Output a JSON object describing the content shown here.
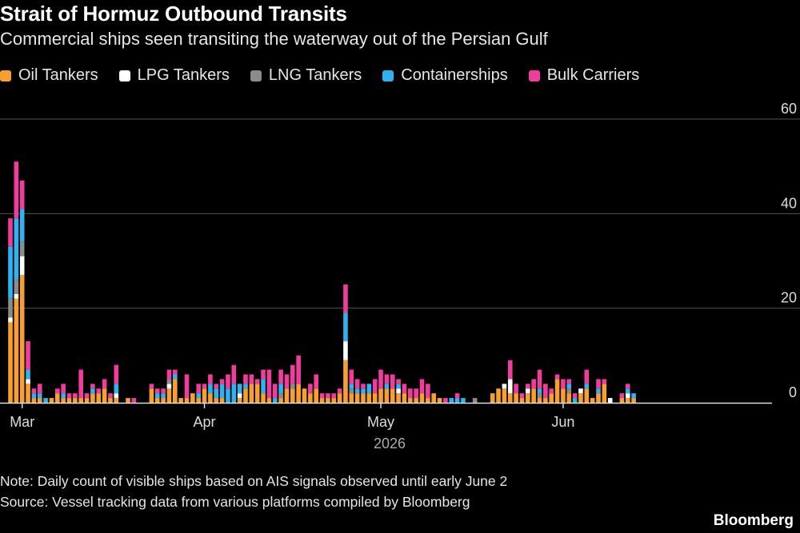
{
  "title": "Strait of Hormuz Outbound Transits",
  "subtitle": "Commercial ships seen transiting the waterway out of the Persian Gulf",
  "note": "Note: Daily count of visible ships based on AIS signals observed until early June 2",
  "source": "Source: Vessel tracking data from various platforms compiled by Bloomberg",
  "brand": "Bloomberg",
  "chart_data": {
    "type": "bar",
    "stacked": true,
    "title": "Strait of Hormuz Outbound Transits",
    "subtitle": "Commercial ships seen transiting the waterway out of the Persian Gulf",
    "ylim": [
      0,
      60
    ],
    "y_ticks": [
      0,
      20,
      40,
      60
    ],
    "y_axis_side": "right",
    "grid": true,
    "legend_position": "top-left",
    "x_start_date": "2026-02-27",
    "x_tick_labels": [
      {
        "label": "Mar",
        "date": "2026-03-01"
      },
      {
        "label": "Apr",
        "date": "2026-04-01"
      },
      {
        "label": "May",
        "date": "2026-05-01"
      },
      {
        "label": "Jun",
        "date": "2026-06-01"
      }
    ],
    "x_year_label": "2026",
    "series": [
      {
        "name": "Oil Tankers",
        "color": "#f7a030",
        "values": [
          17,
          22,
          27,
          4,
          1,
          1,
          0,
          1,
          2,
          1,
          1,
          1,
          1,
          1,
          2,
          2,
          3,
          1,
          1,
          0,
          1,
          0,
          0,
          0,
          3,
          1,
          1,
          3,
          5,
          1,
          1,
          2,
          1,
          3,
          2,
          1,
          1,
          0,
          0,
          1,
          3,
          4,
          4,
          2,
          1,
          0,
          1,
          3,
          3,
          4,
          3,
          2,
          3,
          1,
          1,
          1,
          2,
          9,
          2,
          2,
          2,
          2,
          2,
          3,
          3,
          3,
          2,
          2,
          1,
          1,
          2,
          1,
          2,
          1,
          0,
          0,
          0,
          0,
          0,
          0,
          0,
          0,
          2,
          3,
          3,
          2,
          2,
          1,
          2,
          3,
          1,
          1,
          2,
          5,
          3,
          2,
          0,
          2,
          3,
          1,
          2,
          4,
          0,
          0,
          1,
          1,
          1
        ]
      },
      {
        "name": "LPG Tankers",
        "color": "#ffffff",
        "values": [
          1,
          1,
          4,
          1,
          0,
          0,
          0,
          0,
          0,
          0,
          0,
          0,
          0,
          0,
          0,
          0,
          0,
          0,
          1,
          0,
          0,
          0,
          0,
          0,
          0,
          0,
          0,
          1,
          0,
          0,
          0,
          0,
          0,
          0,
          0,
          0,
          0,
          0,
          0,
          1,
          0,
          0,
          0,
          0,
          0,
          0,
          0,
          0,
          0,
          0,
          0,
          0,
          0,
          0,
          0,
          0,
          0,
          4,
          0,
          0,
          0,
          0,
          0,
          0,
          0,
          0,
          1,
          0,
          0,
          0,
          0,
          0,
          0,
          0,
          0,
          0,
          0,
          0,
          0,
          0,
          0,
          0,
          0,
          0,
          1,
          3,
          0,
          0,
          1,
          0,
          0,
          0,
          0,
          0,
          0,
          0,
          0,
          1,
          0,
          0,
          0,
          0,
          1,
          0,
          0,
          1,
          0
        ]
      },
      {
        "name": "LNG Tankers",
        "color": "#8c8c8c",
        "values": [
          4,
          3,
          3,
          0,
          0,
          0,
          0,
          0,
          0,
          0,
          0,
          0,
          0,
          0,
          0,
          0,
          0,
          0,
          0,
          0,
          0,
          0,
          0,
          0,
          0,
          0,
          0,
          1,
          0,
          0,
          0,
          0,
          0,
          0,
          0,
          0,
          0,
          0,
          0,
          0,
          0,
          0,
          0,
          0,
          0,
          0,
          1,
          0,
          1,
          0,
          0,
          0,
          0,
          0,
          0,
          0,
          0,
          0,
          1,
          0,
          0,
          0,
          0,
          0,
          0,
          0,
          0,
          0,
          0,
          0,
          0,
          0,
          0,
          0,
          0,
          0,
          0,
          0,
          0,
          1,
          0,
          0,
          0,
          0,
          0,
          0,
          0,
          0,
          0,
          0,
          1,
          0,
          0,
          0,
          0,
          1,
          0,
          0,
          0,
          0,
          0,
          0,
          0,
          0,
          0,
          0,
          0
        ]
      },
      {
        "name": "Containerships",
        "color": "#2fb2ef",
        "values": [
          11,
          13,
          7,
          2,
          1,
          1,
          1,
          0,
          0,
          1,
          0,
          0,
          0,
          0,
          1,
          0,
          0,
          0,
          2,
          0,
          0,
          0,
          0,
          0,
          0,
          1,
          1,
          0,
          1,
          0,
          0,
          0,
          1,
          0,
          2,
          2,
          3,
          3,
          4,
          2,
          1,
          0,
          0,
          3,
          0,
          1,
          2,
          0,
          0,
          0,
          0,
          0,
          0,
          0,
          0,
          0,
          0,
          6,
          1,
          1,
          1,
          2,
          0,
          0,
          1,
          0,
          1,
          0,
          0,
          0,
          0,
          0,
          0,
          0,
          0,
          1,
          1,
          1,
          0,
          0,
          0,
          0,
          0,
          0,
          0,
          0,
          0,
          0,
          0,
          0,
          1,
          0,
          0,
          0,
          0,
          1,
          1,
          0,
          1,
          0,
          1,
          0,
          0,
          0,
          0,
          1,
          1
        ]
      },
      {
        "name": "Bulk Carriers",
        "color": "#f03c9c",
        "values": [
          6,
          12,
          6,
          6,
          1,
          2,
          0,
          0,
          1,
          2,
          1,
          1,
          6,
          1,
          1,
          1,
          2,
          1,
          4,
          0,
          0,
          1,
          0,
          0,
          1,
          1,
          1,
          2,
          1,
          0,
          5,
          0,
          2,
          1,
          2,
          1,
          1,
          3,
          4,
          0,
          2,
          2,
          1,
          2,
          6,
          3,
          3,
          3,
          4,
          6,
          0,
          2,
          3,
          1,
          1,
          1,
          1,
          6,
          3,
          2,
          1,
          0,
          3,
          4,
          2,
          3,
          1,
          2,
          2,
          2,
          3,
          3,
          0,
          0,
          1,
          0,
          1,
          0,
          0,
          0,
          0,
          0,
          0,
          0,
          0,
          4,
          2,
          1,
          1,
          2,
          4,
          3,
          1,
          1,
          2,
          1,
          1,
          0,
          3,
          0,
          2,
          1,
          0,
          0,
          1,
          1,
          0
        ]
      }
    ]
  }
}
